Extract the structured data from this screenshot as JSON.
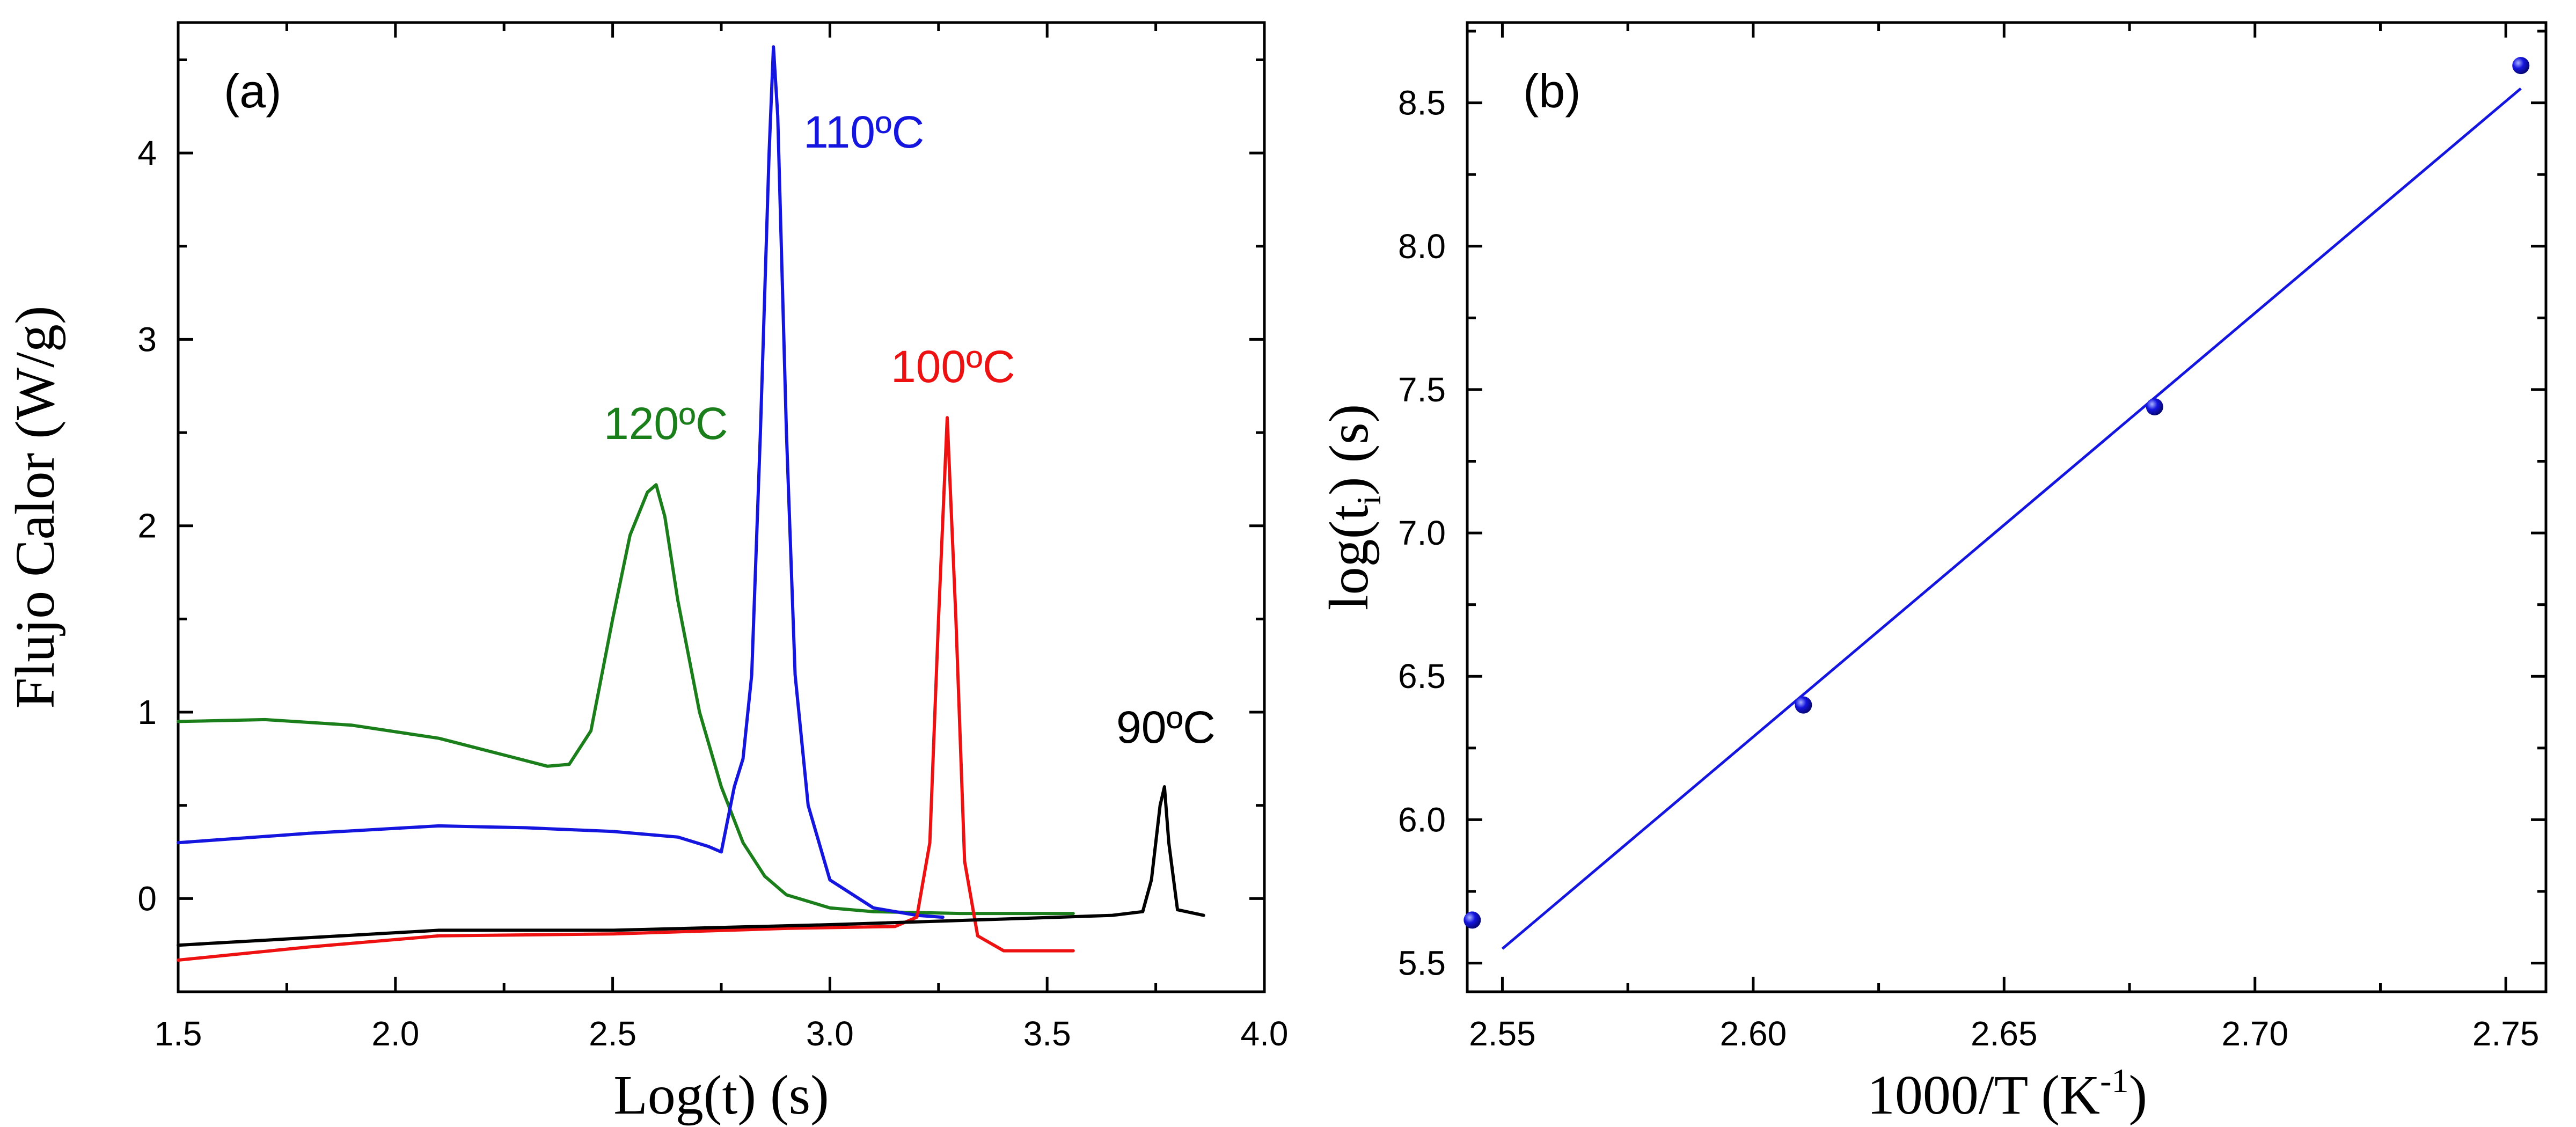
{
  "chart_data": [
    {
      "type": "line",
      "panel_label": "(a)",
      "xlabel": "Log(t) (s)",
      "ylabel": "Flujo Calor (W/g)",
      "xlim": [
        1.5,
        4.0
      ],
      "ylim": [
        -0.5,
        4.7
      ],
      "xticks": [
        "1.5",
        "2.0",
        "2.5",
        "3.0",
        "3.5",
        "4.0"
      ],
      "yticks": [
        "0",
        "1",
        "2",
        "3",
        "4"
      ],
      "series": [
        {
          "name": "120ºC",
          "color": "#1a7f1a",
          "x": [
            1.5,
            1.7,
            1.9,
            2.1,
            2.25,
            2.35,
            2.4,
            2.45,
            2.5,
            2.54,
            2.58,
            2.6,
            2.62,
            2.65,
            2.7,
            2.75,
            2.8,
            2.85,
            2.9,
            3.0,
            3.1,
            3.3,
            3.56
          ],
          "y": [
            0.95,
            0.96,
            0.93,
            0.86,
            0.77,
            0.71,
            0.72,
            0.9,
            1.5,
            1.95,
            2.18,
            2.22,
            2.05,
            1.6,
            1.0,
            0.6,
            0.3,
            0.12,
            0.02,
            -0.05,
            -0.07,
            -0.08,
            -0.08
          ]
        },
        {
          "name": "110ºC",
          "color": "#1515e0",
          "x": [
            1.5,
            1.8,
            2.1,
            2.3,
            2.5,
            2.65,
            2.72,
            2.75,
            2.78,
            2.8,
            2.82,
            2.84,
            2.86,
            2.87,
            2.88,
            2.9,
            2.92,
            2.95,
            3.0,
            3.1,
            3.2,
            3.26
          ],
          "y": [
            0.3,
            0.35,
            0.39,
            0.38,
            0.36,
            0.33,
            0.28,
            0.25,
            0.6,
            0.75,
            1.2,
            2.5,
            4.0,
            4.57,
            4.2,
            2.5,
            1.2,
            0.5,
            0.1,
            -0.05,
            -0.09,
            -0.1
          ]
        },
        {
          "name": "100ºC",
          "color": "#ee1111",
          "x": [
            1.5,
            1.8,
            2.1,
            2.5,
            2.9,
            3.15,
            3.2,
            3.23,
            3.25,
            3.27,
            3.29,
            3.31,
            3.34,
            3.4,
            3.56
          ],
          "y": [
            -0.33,
            -0.26,
            -0.2,
            -0.19,
            -0.16,
            -0.15,
            -0.1,
            0.3,
            1.5,
            2.58,
            1.5,
            0.2,
            -0.2,
            -0.28,
            -0.28
          ]
        },
        {
          "name": "90ºC",
          "color": "#000000",
          "x": [
            1.5,
            1.8,
            2.1,
            2.5,
            3.0,
            3.4,
            3.65,
            3.72,
            3.74,
            3.76,
            3.77,
            3.78,
            3.8,
            3.86
          ],
          "y": [
            -0.25,
            -0.21,
            -0.17,
            -0.17,
            -0.14,
            -0.11,
            -0.09,
            -0.07,
            0.1,
            0.5,
            0.6,
            0.3,
            -0.06,
            -0.09
          ]
        }
      ]
    },
    {
      "type": "scatter",
      "panel_label": "(b)",
      "xlabel": "1000/T (K",
      "xlabel_sup": "-1",
      "xlabel_end": ")",
      "ylabel": "log(t",
      "ylabel_sub": "i",
      "ylabel_end": ") (s)",
      "xlim": [
        2.543,
        2.758
      ],
      "ylim": [
        5.4,
        8.78
      ],
      "xticks": [
        "2.55",
        "2.60",
        "2.65",
        "2.70",
        "2.75"
      ],
      "yticks": [
        "5.5",
        "6.0",
        "6.5",
        "7.0",
        "7.5",
        "8.0",
        "8.5"
      ],
      "points": {
        "x": [
          2.544,
          2.61,
          2.68,
          2.753
        ],
        "y": [
          5.65,
          6.4,
          7.44,
          8.63
        ]
      },
      "fit_line": {
        "x": [
          2.55,
          2.753
        ],
        "y": [
          5.55,
          8.55
        ]
      },
      "color": "#1515e0"
    }
  ]
}
